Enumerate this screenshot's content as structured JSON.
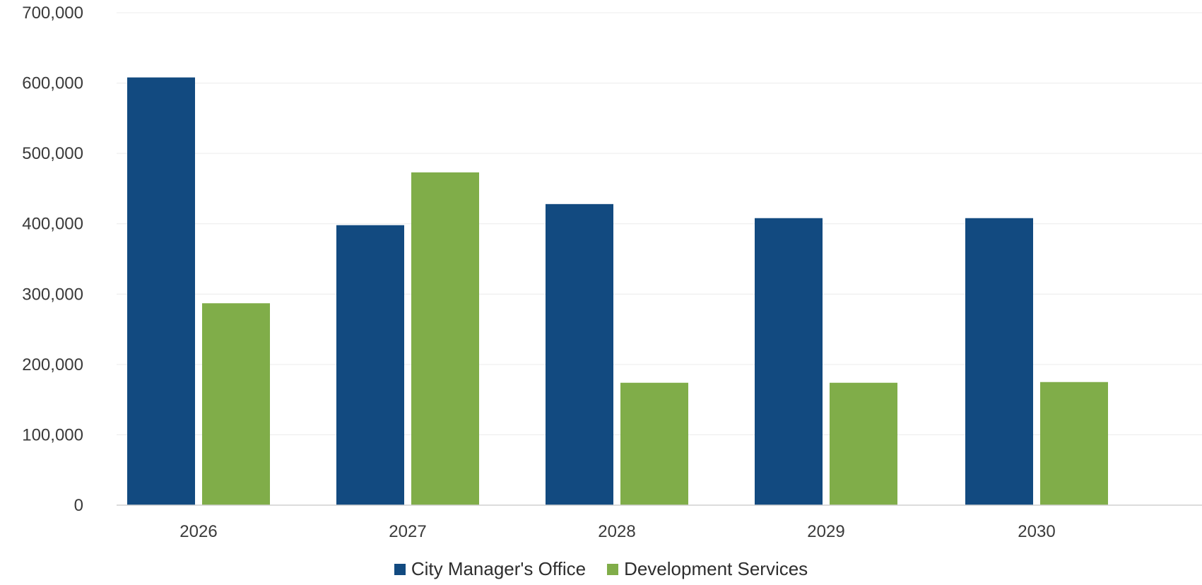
{
  "colors": {
    "city_manager": "#124A80",
    "development_services": "#80AD49",
    "axis": "#d0d0d0",
    "gridline": "#ececec",
    "tick_text": "#3a3a3a"
  },
  "chart_data": {
    "type": "bar",
    "title": "",
    "xlabel": "",
    "ylabel": "",
    "categories": [
      "2026",
      "2027",
      "2028",
      "2029",
      "2030"
    ],
    "series": [
      {
        "name": "City Manager's Office",
        "color": "#124A80",
        "values": [
          608000,
          398000,
          428000,
          408000,
          408000
        ]
      },
      {
        "name": "Development Services",
        "color": "#80AD49",
        "values": [
          287000,
          473000,
          174000,
          174000,
          175000
        ]
      }
    ],
    "ylim": [
      0,
      700000
    ],
    "yticks": [
      "0",
      "100,000",
      "200,000",
      "300,000",
      "400,000",
      "500,000",
      "600,000",
      "700,000"
    ],
    "grid": true,
    "legend_position": "bottom"
  }
}
